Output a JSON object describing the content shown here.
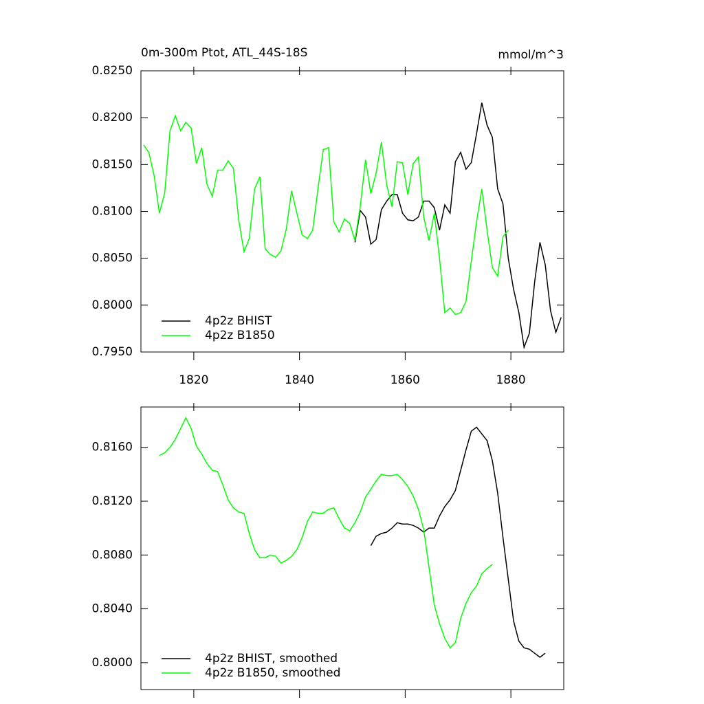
{
  "chart_data": [
    {
      "type": "line",
      "title": "0m-300m Ptot, ATL_44S-18S",
      "units": "mmol/m^3",
      "xlim": [
        1810,
        1890
      ],
      "xticks": [
        1820,
        1840,
        1860,
        1880
      ],
      "ylim": [
        0.795,
        0.825
      ],
      "yticks": [
        {
          "value": 0.795,
          "label": "0.7950"
        },
        {
          "value": 0.8,
          "label": "0.8000"
        },
        {
          "value": 0.805,
          "label": "0.8050"
        },
        {
          "value": 0.81,
          "label": "0.8100"
        },
        {
          "value": 0.815,
          "label": "0.8150"
        },
        {
          "value": 0.82,
          "label": "0.8200"
        },
        {
          "value": 0.825,
          "label": "0.8250"
        }
      ],
      "legend": "lower left",
      "series": [
        {
          "name": "4p2z BHIST",
          "color": "#000000",
          "x": [
            1850.5,
            1851.5,
            1852.5,
            1853.5,
            1854.5,
            1855.5,
            1856.5,
            1857.5,
            1858.5,
            1859.5,
            1860.5,
            1861.5,
            1862.5,
            1863.5,
            1864.5,
            1865.5,
            1866.5,
            1867.5,
            1868.5,
            1869.5,
            1870.5,
            1871.5,
            1872.5,
            1873.5,
            1874.5,
            1875.5,
            1876.5,
            1877.5,
            1878.5,
            1879.5,
            1880.5,
            1881.5,
            1882.5,
            1883.5,
            1884.5,
            1885.5,
            1886.5,
            1887.5,
            1888.5,
            1889.5
          ],
          "values": [
            0.8067,
            0.8101,
            0.8094,
            0.8065,
            0.807,
            0.8102,
            0.8111,
            0.8118,
            0.8118,
            0.8098,
            0.8091,
            0.809,
            0.8094,
            0.8111,
            0.8111,
            0.8104,
            0.808,
            0.8107,
            0.8098,
            0.8153,
            0.8163,
            0.8145,
            0.8152,
            0.8183,
            0.8216,
            0.8192,
            0.8179,
            0.8124,
            0.8108,
            0.805,
            0.8017,
            0.7992,
            0.7955,
            0.797,
            0.8025,
            0.8067,
            0.8043,
            0.7994,
            0.7971,
            0.7987
          ]
        },
        {
          "name": "4p2z B1850",
          "color": "#00ff00",
          "x": [
            1810.5,
            1811.5,
            1812.5,
            1813.5,
            1814.5,
            1815.5,
            1816.5,
            1817.5,
            1818.5,
            1819.5,
            1820.5,
            1821.5,
            1822.5,
            1823.5,
            1824.5,
            1825.5,
            1826.5,
            1827.5,
            1828.5,
            1829.5,
            1830.5,
            1831.5,
            1832.5,
            1833.5,
            1834.5,
            1835.5,
            1836.5,
            1837.5,
            1838.5,
            1839.5,
            1840.5,
            1841.5,
            1842.5,
            1843.5,
            1844.5,
            1845.5,
            1846.5,
            1847.5,
            1848.5,
            1849.5,
            1850.5,
            1851.5,
            1852.5,
            1853.5,
            1854.5,
            1855.5,
            1856.5,
            1857.5,
            1858.5,
            1859.5,
            1860.5,
            1861.5,
            1862.5,
            1863.5,
            1864.5,
            1865.5,
            1866.5,
            1867.5,
            1868.5,
            1869.5,
            1870.5,
            1871.5,
            1872.5,
            1873.5,
            1874.5,
            1875.5,
            1876.5,
            1877.5,
            1878.5,
            1879.5
          ],
          "values": [
            0.8171,
            0.8163,
            0.8138,
            0.8098,
            0.812,
            0.8186,
            0.8202,
            0.8186,
            0.8195,
            0.8189,
            0.8151,
            0.8168,
            0.8129,
            0.8116,
            0.8144,
            0.8144,
            0.8154,
            0.8146,
            0.8091,
            0.8057,
            0.8071,
            0.8124,
            0.8137,
            0.806,
            0.8054,
            0.8051,
            0.8058,
            0.8081,
            0.8122,
            0.8098,
            0.8075,
            0.8071,
            0.808,
            0.8124,
            0.8166,
            0.8168,
            0.8089,
            0.8078,
            0.8092,
            0.8087,
            0.8069,
            0.8105,
            0.8155,
            0.8119,
            0.8141,
            0.8174,
            0.8128,
            0.8105,
            0.8153,
            0.8152,
            0.8118,
            0.8151,
            0.8158,
            0.8094,
            0.8069,
            0.8098,
            0.805,
            0.7992,
            0.7997,
            0.799,
            0.7992,
            0.8004,
            0.8047,
            0.8089,
            0.8124,
            0.808,
            0.804,
            0.8031,
            0.8073,
            0.808
          ]
        }
      ]
    },
    {
      "type": "line",
      "xlim": [
        1810,
        1890
      ],
      "xticks": [
        1820,
        1840,
        1860,
        1880
      ],
      "ylim": [
        0.798,
        0.819
      ],
      "yticks": [
        {
          "value": 0.8,
          "label": "0.8000"
        },
        {
          "value": 0.804,
          "label": "0.8040"
        },
        {
          "value": 0.808,
          "label": "0.8080"
        },
        {
          "value": 0.812,
          "label": "0.8120"
        },
        {
          "value": 0.816,
          "label": "0.8160"
        }
      ],
      "legend": "lower left",
      "series": [
        {
          "name": "4p2z BHIST, smoothed",
          "color": "#000000",
          "x": [
            1853.5,
            1854.5,
            1855.5,
            1856.5,
            1857.5,
            1858.5,
            1859.5,
            1860.5,
            1861.5,
            1862.5,
            1863.5,
            1864.5,
            1865.5,
            1866.5,
            1867.5,
            1868.5,
            1869.5,
            1870.5,
            1871.5,
            1872.5,
            1873.5,
            1874.5,
            1875.5,
            1876.5,
            1877.5,
            1878.5,
            1879.5,
            1880.5,
            1881.5,
            1882.5,
            1883.5,
            1884.5,
            1885.5,
            1886.5
          ],
          "values": [
            0.8087,
            0.8094,
            0.8096,
            0.8097,
            0.81,
            0.8104,
            0.8103,
            0.8103,
            0.8102,
            0.81,
            0.8097,
            0.81,
            0.81,
            0.8109,
            0.8116,
            0.8121,
            0.8128,
            0.8143,
            0.8158,
            0.8172,
            0.8175,
            0.817,
            0.8165,
            0.815,
            0.8126,
            0.8093,
            0.8062,
            0.8031,
            0.8016,
            0.8011,
            0.801,
            0.8007,
            0.8004,
            0.8007
          ]
        },
        {
          "name": "4p2z B1850, smoothed",
          "color": "#00ff00",
          "x": [
            1813.5,
            1814.5,
            1815.5,
            1816.5,
            1817.5,
            1818.5,
            1819.5,
            1820.5,
            1821.5,
            1822.5,
            1823.5,
            1824.5,
            1825.5,
            1826.5,
            1827.5,
            1828.5,
            1829.5,
            1830.5,
            1831.5,
            1832.5,
            1833.5,
            1834.5,
            1835.5,
            1836.5,
            1837.5,
            1838.5,
            1839.5,
            1840.5,
            1841.5,
            1842.5,
            1843.5,
            1844.5,
            1845.5,
            1846.5,
            1847.5,
            1848.5,
            1849.5,
            1850.5,
            1851.5,
            1852.5,
            1853.5,
            1854.5,
            1855.5,
            1856.5,
            1857.5,
            1858.5,
            1859.5,
            1860.5,
            1861.5,
            1862.5,
            1863.5,
            1864.5,
            1865.5,
            1866.5,
            1867.5,
            1868.5,
            1869.5,
            1870.5,
            1871.5,
            1872.5,
            1873.5,
            1874.5,
            1875.5,
            1876.5
          ],
          "values": [
            0.8154,
            0.8156,
            0.816,
            0.8166,
            0.8174,
            0.8182,
            0.8174,
            0.8161,
            0.8155,
            0.8148,
            0.8143,
            0.8142,
            0.8132,
            0.8121,
            0.8115,
            0.8112,
            0.8111,
            0.8096,
            0.8084,
            0.8078,
            0.8078,
            0.808,
            0.8079,
            0.8074,
            0.8076,
            0.8079,
            0.8084,
            0.8093,
            0.8105,
            0.8112,
            0.8111,
            0.8111,
            0.8114,
            0.8115,
            0.8107,
            0.81,
            0.8098,
            0.8104,
            0.8112,
            0.8123,
            0.8129,
            0.8135,
            0.814,
            0.8139,
            0.8139,
            0.814,
            0.8136,
            0.8131,
            0.8124,
            0.8114,
            0.8099,
            0.8071,
            0.8043,
            0.8029,
            0.8018,
            0.8011,
            0.8015,
            0.8033,
            0.8044,
            0.8052,
            0.8057,
            0.8066,
            0.807,
            0.8073
          ]
        }
      ]
    }
  ]
}
